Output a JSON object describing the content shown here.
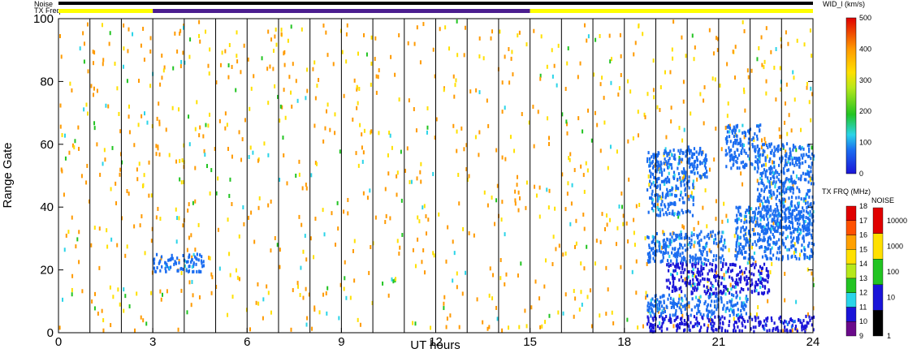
{
  "chart_data": {
    "type": "heatmap",
    "xlabel": "UT hours",
    "ylabel": "Range Gate",
    "xlim": [
      0,
      24
    ],
    "ylim": [
      0,
      100
    ],
    "x_ticks": [
      "0",
      "3",
      "6",
      "9",
      "12",
      "15",
      "18",
      "21",
      "24"
    ],
    "y_ticks": [
      "0",
      "20",
      "40",
      "60",
      "80",
      "100"
    ],
    "vertical_scan_lines": true,
    "header_bars": {
      "noise_label": "Noise",
      "txfreq_label": "TX Freq",
      "noise_color": "#000000",
      "txfreq_segments": [
        {
          "start": 0,
          "end": 3,
          "color": "#ffff00"
        },
        {
          "start": 3,
          "end": 15,
          "color": "#4b1d8f"
        },
        {
          "start": 15,
          "end": 24,
          "color": "#ffff00"
        }
      ]
    },
    "colorbars": {
      "width": {
        "title": "WID_l (km/s)",
        "ticks": [
          "0",
          "100",
          "200",
          "300",
          "400",
          "500"
        ],
        "range": [
          0,
          500
        ]
      },
      "txfreq": {
        "title": "TX FRQ (MHz)",
        "ticks": [
          "9",
          "10",
          "11",
          "12",
          "13",
          "14",
          "15",
          "16",
          "17",
          "18"
        ],
        "colors": [
          "#000000",
          "#6a0a8a",
          "#1a14d8",
          "#2ad4e8",
          "#22c422",
          "#b6e81a",
          "#ffe000",
          "#ffa000",
          "#ff5000",
          "#e00000"
        ]
      },
      "noise": {
        "title": "NOISE",
        "ticks": [
          "1",
          "10",
          "100",
          "1000",
          "10000"
        ],
        "colors": [
          "#000000",
          "#1a14d8",
          "#22c422",
          "#ffe000",
          "#e00000"
        ]
      }
    },
    "echo_regions": [
      {
        "t0": 3.0,
        "t1": 4.6,
        "g0": 19,
        "g1": 25,
        "value": 60
      },
      {
        "t0": 18.7,
        "t1": 24.0,
        "g0": 0,
        "g1": 5,
        "value": 40
      },
      {
        "t0": 18.7,
        "t1": 21.9,
        "g0": 5,
        "g1": 12,
        "value": 60
      },
      {
        "t0": 19.3,
        "t1": 22.6,
        "g0": 12,
        "g1": 22,
        "value": 50
      },
      {
        "t0": 18.7,
        "t1": 21.2,
        "g0": 22,
        "g1": 32,
        "value": 80
      },
      {
        "t0": 18.7,
        "t1": 20.2,
        "g0": 37,
        "g1": 58,
        "value": 60
      },
      {
        "t0": 20.0,
        "t1": 20.6,
        "g0": 49,
        "g1": 59,
        "value": 90
      },
      {
        "t0": 21.5,
        "t1": 24.0,
        "g0": 23,
        "g1": 40,
        "value": 60
      },
      {
        "t0": 22.2,
        "t1": 24.0,
        "g0": 32,
        "g1": 60,
        "value": 60
      },
      {
        "t0": 21.2,
        "t1": 22.3,
        "g0": 52,
        "g1": 66,
        "value": 60
      }
    ]
  }
}
